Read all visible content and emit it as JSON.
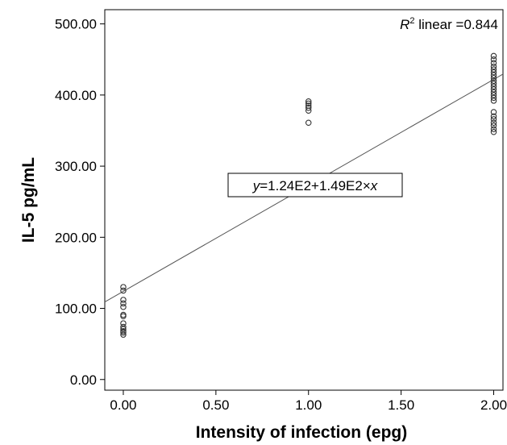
{
  "chart_data": {
    "type": "scatter",
    "xlabel": "Intensity of infection (epg)",
    "ylabel": "IL-5 pg/mL",
    "xlim": [
      -0.1,
      2.05
    ],
    "ylim": [
      -15,
      520
    ],
    "xticks": [
      0.0,
      0.5,
      1.0,
      1.5,
      2.0
    ],
    "xtick_labels": [
      "0.00",
      "0.50",
      "1.00",
      "1.50",
      "2.00"
    ],
    "yticks": [
      0,
      100,
      200,
      300,
      400,
      500
    ],
    "ytick_labels": [
      "0.00",
      "100.00",
      "200.00",
      "300.00",
      "400.00",
      "500.00"
    ],
    "grid": false,
    "points": [
      {
        "x": 0,
        "y": 130
      },
      {
        "x": 0,
        "y": 125
      },
      {
        "x": 0,
        "y": 112
      },
      {
        "x": 0,
        "y": 107
      },
      {
        "x": 0,
        "y": 102
      },
      {
        "x": 0,
        "y": 91
      },
      {
        "x": 0,
        "y": 89
      },
      {
        "x": 0,
        "y": 79
      },
      {
        "x": 0,
        "y": 74
      },
      {
        "x": 0,
        "y": 71
      },
      {
        "x": 0,
        "y": 68
      },
      {
        "x": 0,
        "y": 66
      },
      {
        "x": 0,
        "y": 63
      },
      {
        "x": 1,
        "y": 391
      },
      {
        "x": 1,
        "y": 388
      },
      {
        "x": 1,
        "y": 385
      },
      {
        "x": 1,
        "y": 382
      },
      {
        "x": 1,
        "y": 378
      },
      {
        "x": 1,
        "y": 361
      },
      {
        "x": 2,
        "y": 455
      },
      {
        "x": 2,
        "y": 450
      },
      {
        "x": 2,
        "y": 445
      },
      {
        "x": 2,
        "y": 440
      },
      {
        "x": 2,
        "y": 436
      },
      {
        "x": 2,
        "y": 432
      },
      {
        "x": 2,
        "y": 428
      },
      {
        "x": 2,
        "y": 424
      },
      {
        "x": 2,
        "y": 420
      },
      {
        "x": 2,
        "y": 416
      },
      {
        "x": 2,
        "y": 412
      },
      {
        "x": 2,
        "y": 408
      },
      {
        "x": 2,
        "y": 404
      },
      {
        "x": 2,
        "y": 400
      },
      {
        "x": 2,
        "y": 396
      },
      {
        "x": 2,
        "y": 392
      },
      {
        "x": 2,
        "y": 376
      },
      {
        "x": 2,
        "y": 370
      },
      {
        "x": 2,
        "y": 366
      },
      {
        "x": 2,
        "y": 361
      },
      {
        "x": 2,
        "y": 357
      },
      {
        "x": 2,
        "y": 352
      },
      {
        "x": 2,
        "y": 348
      }
    ],
    "fit_line": {
      "intercept": 124,
      "slope": 149
    },
    "equation": {
      "var_y": "y",
      "text": "=1.24E2+1.49E2×",
      "var_x": "x"
    },
    "r2": {
      "symbol": "R",
      "superscript": "2",
      "text": " linear =0.844"
    }
  }
}
